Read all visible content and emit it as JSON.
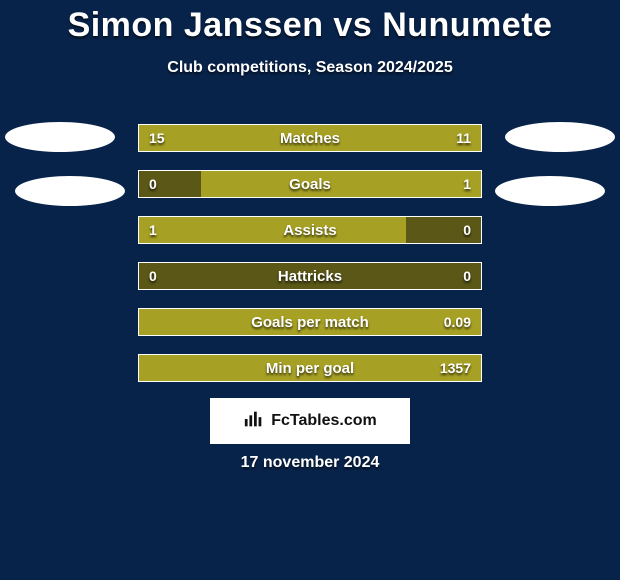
{
  "type": "comparison-bar-infographic",
  "background_color": "#08234a",
  "text_color": "#ffffff",
  "title": "Simon Janssen vs Nunumete",
  "title_fontsize": 34,
  "subtitle": "Club competitions, Season 2024/2025",
  "subtitle_fontsize": 16,
  "bar_border_color": "#ffffff",
  "rows": [
    {
      "label": "Matches",
      "left": "15",
      "right": "11",
      "left_pct": 58,
      "right_pct": 42,
      "left_color": "#a6a024",
      "right_color": "#a6a024"
    },
    {
      "label": "Goals",
      "left": "0",
      "right": "1",
      "left_pct": 18,
      "right_pct": 82,
      "left_color": "#5a5717",
      "right_color": "#a6a024"
    },
    {
      "label": "Assists",
      "left": "1",
      "right": "0",
      "left_pct": 78,
      "right_pct": 22,
      "left_color": "#a6a024",
      "right_color": "#5a5717"
    },
    {
      "label": "Hattricks",
      "left": "0",
      "right": "0",
      "left_pct": 50,
      "right_pct": 50,
      "left_color": "#5a5717",
      "right_color": "#5a5717"
    },
    {
      "label": "Goals per match",
      "left": "",
      "right": "0.09",
      "left_pct": 35,
      "right_pct": 65,
      "left_color": "#a6a024",
      "right_color": "#a6a024"
    },
    {
      "label": "Min per goal",
      "left": "",
      "right": "1357",
      "left_pct": 100,
      "right_pct": 0,
      "left_color": "#a6a024",
      "right_color": "#a6a024"
    }
  ],
  "footer_brand": "FcTables.com",
  "date": "17 november 2024",
  "ovals": {
    "color": "#ffffff",
    "positions": [
      "top-left",
      "top-right",
      "bottom-left",
      "bottom-right"
    ]
  }
}
